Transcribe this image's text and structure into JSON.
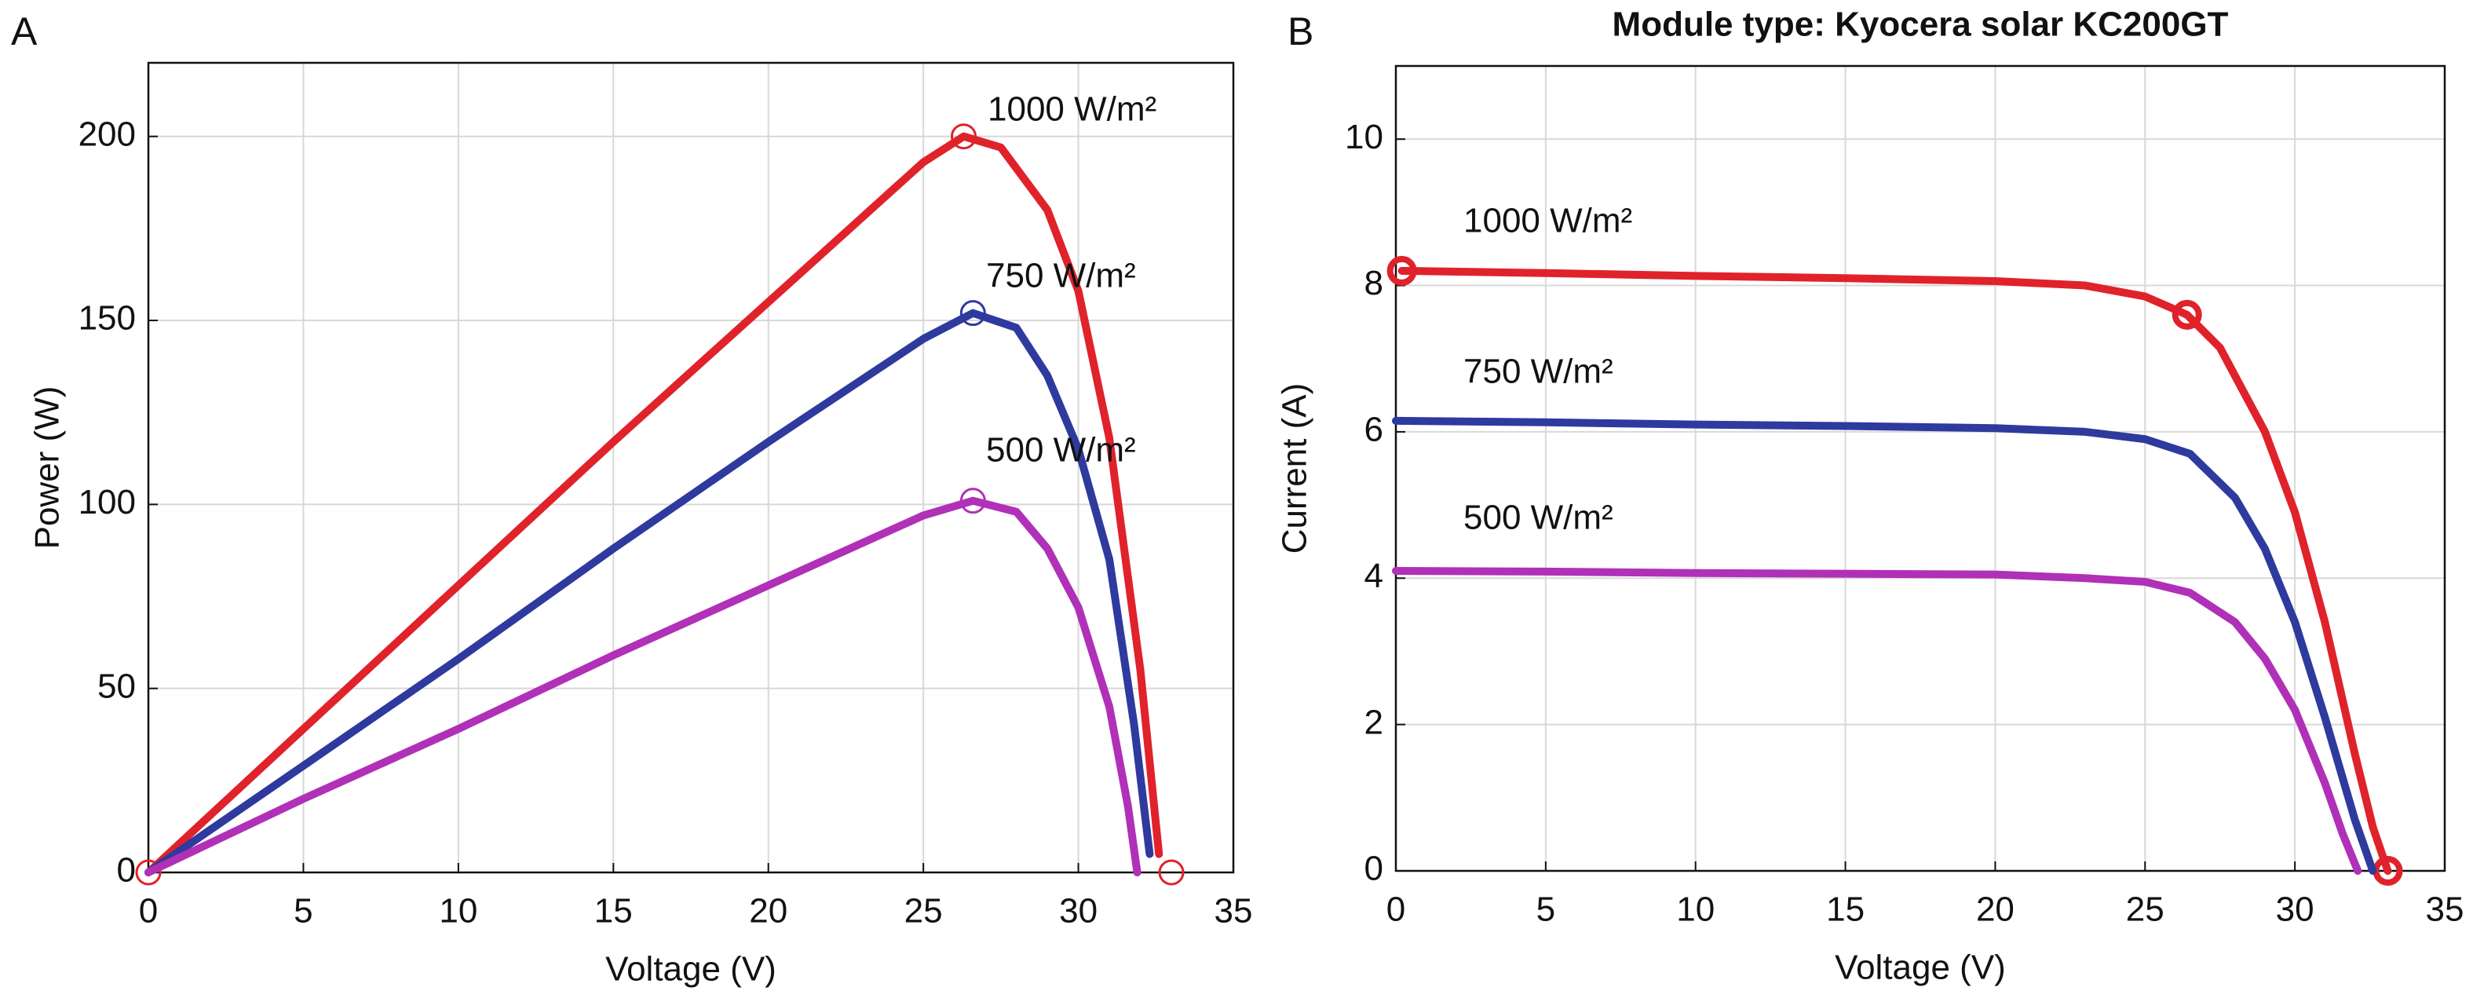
{
  "chart_data": [
    {
      "type": "line",
      "panel_label": "A",
      "xlabel": "Voltage (V)",
      "ylabel": "Power (W)",
      "xlim": [
        0,
        35
      ],
      "xticks": [
        0,
        5,
        10,
        15,
        20,
        25,
        30,
        35
      ],
      "ylim": [
        0,
        220
      ],
      "yticks": [
        0,
        50,
        100,
        150,
        200
      ],
      "grid": true,
      "series": [
        {
          "name": "1000 W/m²",
          "color": "#e0222b",
          "label_color": "#e0222b",
          "x": [
            0,
            5,
            10,
            15,
            20,
            25,
            26.3,
            27.5,
            29,
            30,
            31,
            32,
            32.6
          ],
          "values": [
            0,
            39,
            78,
            117,
            155,
            193,
            200,
            197,
            180,
            158,
            118,
            55,
            5
          ],
          "marker_x": [
            0,
            26.3,
            33
          ],
          "marker_y": [
            0,
            200,
            0
          ]
        },
        {
          "name": "750 W/m²",
          "color": "#2e3a9e",
          "label_color": "#111111",
          "x": [
            0,
            5,
            10,
            15,
            20,
            25,
            26.6,
            28,
            29,
            30,
            31,
            31.8,
            32.3
          ],
          "values": [
            0,
            29,
            58,
            88,
            117,
            145,
            152,
            148,
            135,
            115,
            85,
            40,
            5
          ],
          "marker_x": [
            26.6
          ],
          "marker_y": [
            152
          ]
        },
        {
          "name": "500 W/m²",
          "color": "#b030b8",
          "label_color": "#111111",
          "x": [
            0,
            5,
            10,
            15,
            20,
            25,
            26.6,
            28,
            29,
            30,
            31,
            31.6,
            31.9
          ],
          "values": [
            0,
            20,
            39,
            59,
            78,
            97,
            101,
            98,
            88,
            72,
            45,
            18,
            0
          ],
          "marker_x": [
            26.6
          ],
          "marker_y": [
            101
          ]
        }
      ]
    },
    {
      "type": "line",
      "panel_label": "B",
      "title": "Module type: Kyocera solar KC200GT",
      "xlabel": "Voltage (V)",
      "ylabel": "Current (A)",
      "xlim": [
        0,
        35
      ],
      "xticks": [
        0,
        5,
        10,
        15,
        20,
        25,
        30,
        35
      ],
      "ylim": [
        0,
        11
      ],
      "yticks": [
        0,
        2,
        4,
        6,
        8,
        10
      ],
      "grid": true,
      "series": [
        {
          "name": "1000 W/m²",
          "color": "#e0222b",
          "label_color": "#e0222b",
          "x": [
            0.2,
            5,
            10,
            15,
            20,
            23,
            25,
            26.4,
            27.5,
            29,
            30,
            31,
            32,
            32.6,
            33.1
          ],
          "values": [
            8.2,
            8.17,
            8.13,
            8.1,
            8.06,
            8.0,
            7.85,
            7.6,
            7.15,
            6.0,
            4.9,
            3.4,
            1.6,
            0.6,
            0
          ],
          "marker_x": [
            0.2,
            26.4,
            33.1
          ],
          "marker_y": [
            8.2,
            7.6,
            0
          ]
        },
        {
          "name": "750 W/m²",
          "color": "#2e3a9e",
          "label_color": "#111111",
          "x": [
            0,
            5,
            10,
            15,
            20,
            23,
            25,
            26.5,
            28,
            29,
            30,
            31,
            32,
            32.6
          ],
          "values": [
            6.15,
            6.13,
            6.1,
            6.08,
            6.05,
            6.0,
            5.9,
            5.7,
            5.1,
            4.4,
            3.4,
            2.1,
            0.7,
            0
          ]
        },
        {
          "name": "500 W/m²",
          "color": "#b030b8",
          "label_color": "#111111",
          "x": [
            0,
            5,
            10,
            15,
            20,
            23,
            25,
            26.5,
            28,
            29,
            30,
            31,
            31.6,
            32.1
          ],
          "values": [
            4.1,
            4.09,
            4.07,
            4.06,
            4.05,
            4.0,
            3.95,
            3.8,
            3.4,
            2.9,
            2.2,
            1.2,
            0.5,
            0
          ]
        }
      ]
    }
  ]
}
